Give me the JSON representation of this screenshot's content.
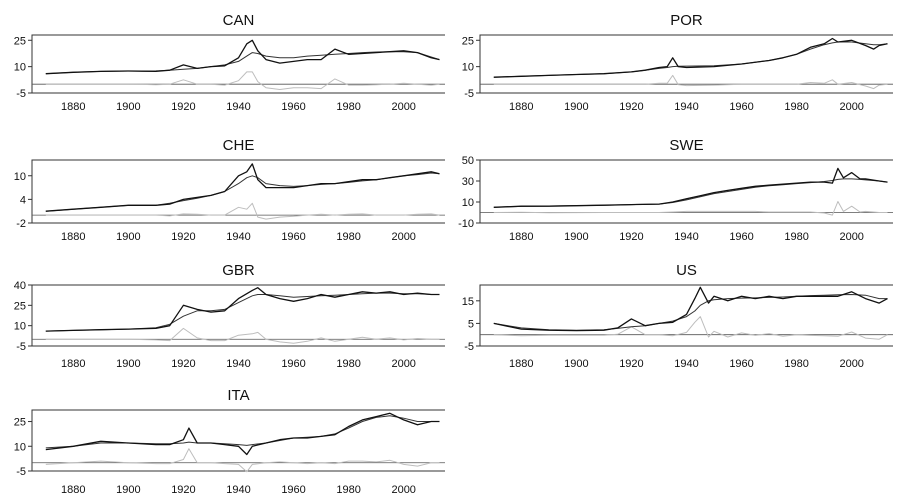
{
  "chart_data": [
    {
      "type": "line",
      "title": "CAN",
      "ylim": [
        -5,
        28
      ],
      "yticks": [
        -5,
        10,
        25
      ],
      "x": [
        1870,
        1880,
        1890,
        1900,
        1905,
        1910,
        1915,
        1920,
        1925,
        1930,
        1935,
        1940,
        1943,
        1945,
        1947,
        1950,
        1955,
        1960,
        1965,
        1970,
        1975,
        1980,
        1985,
        1990,
        1995,
        2000,
        2005,
        2010,
        2013
      ],
      "series": [
        {
          "role": "actual",
          "values": [
            6,
            6.8,
            7.3,
            7.5,
            7.4,
            7.3,
            8,
            11,
            9,
            10,
            10.5,
            15,
            23,
            25,
            19,
            14,
            12,
            13,
            14,
            14,
            20,
            17,
            17.5,
            18,
            18.5,
            19,
            18,
            15,
            14
          ]
        },
        {
          "role": "trend",
          "values": [
            6,
            6.8,
            7.3,
            7.5,
            7.5,
            7.6,
            8,
            8.5,
            9,
            10,
            11,
            13,
            16,
            18,
            17.5,
            16,
            15,
            15,
            16,
            16.5,
            17,
            17.5,
            18,
            18.3,
            18.5,
            18.5,
            18,
            15.5,
            14
          ]
        },
        {
          "role": "cycle",
          "values": [
            0,
            0,
            0,
            0,
            -0.1,
            -0.3,
            0,
            2.5,
            0,
            0,
            -0.5,
            2,
            7,
            7,
            1.5,
            -2,
            -3,
            -2,
            -2,
            -2.5,
            3,
            -0.5,
            -0.5,
            -0.3,
            0,
            0.5,
            0,
            -0.5,
            0
          ]
        }
      ]
    },
    {
      "type": "line",
      "title": "POR",
      "ylim": [
        -5,
        28
      ],
      "yticks": [
        -5,
        10,
        25
      ],
      "x": [
        1870,
        1880,
        1890,
        1900,
        1910,
        1920,
        1925,
        1930,
        1933,
        1935,
        1937,
        1940,
        1950,
        1960,
        1970,
        1975,
        1980,
        1985,
        1990,
        1993,
        1995,
        2000,
        2005,
        2008,
        2010,
        2013
      ],
      "series": [
        {
          "role": "actual",
          "values": [
            4,
            4.5,
            5,
            5.5,
            6,
            7,
            8,
            9.5,
            10,
            15,
            10,
            9.5,
            10,
            11.5,
            13.5,
            15,
            17,
            21,
            23,
            26,
            24,
            25,
            22,
            20,
            22,
            23
          ]
        },
        {
          "role": "trend",
          "values": [
            4,
            4.5,
            5,
            5.5,
            6,
            7,
            8,
            9,
            9.5,
            10,
            10.2,
            10.3,
            10.5,
            11.5,
            13.5,
            15,
            17,
            20,
            22.5,
            23.5,
            24,
            24,
            23,
            22.5,
            22.5,
            23
          ]
        },
        {
          "role": "cycle",
          "values": [
            0,
            0,
            0,
            0,
            0,
            0,
            0,
            0.5,
            0.5,
            5,
            -0.2,
            -0.8,
            -0.5,
            0,
            0,
            0,
            0,
            1,
            0.5,
            2.5,
            0,
            1,
            -1,
            -2.5,
            -0.5,
            0
          ]
        }
      ]
    },
    {
      "type": "line",
      "title": "CHE",
      "ylim": [
        -2,
        14
      ],
      "yticks": [
        -2,
        4,
        10
      ],
      "x": [
        1870,
        1880,
        1890,
        1900,
        1910,
        1915,
        1920,
        1925,
        1930,
        1935,
        1940,
        1943,
        1945,
        1947,
        1950,
        1955,
        1960,
        1965,
        1970,
        1975,
        1980,
        1985,
        1990,
        1995,
        2000,
        2005,
        2010,
        2013
      ],
      "series": [
        {
          "role": "actual",
          "values": [
            1,
            1.5,
            2,
            2.5,
            2.5,
            2.8,
            4,
            4.5,
            5,
            6,
            10,
            11,
            13,
            9,
            7,
            7,
            7,
            7.5,
            8,
            8,
            8.5,
            9,
            9,
            9.5,
            10,
            10.5,
            11,
            10.5
          ]
        },
        {
          "role": "trend",
          "values": [
            1,
            1.5,
            2,
            2.5,
            2.5,
            3,
            3.7,
            4.3,
            5,
            6,
            8,
            9.5,
            10,
            9.5,
            8,
            7.5,
            7.3,
            7.5,
            7.8,
            8,
            8.3,
            8.7,
            9,
            9.5,
            10,
            10.3,
            10.7,
            10.5
          ]
        },
        {
          "role": "cycle",
          "values": [
            0,
            0,
            0,
            0,
            0,
            -0.2,
            0.3,
            0.2,
            0,
            0,
            2,
            1.5,
            3,
            -0.5,
            -1,
            -0.5,
            -0.3,
            0,
            0.2,
            0,
            0.2,
            0.3,
            0,
            0,
            0,
            0.2,
            0.3,
            0
          ]
        }
      ]
    },
    {
      "type": "line",
      "title": "SWE",
      "ylim": [
        -10,
        50
      ],
      "yticks": [
        -10,
        10,
        30,
        50
      ],
      "x": [
        1870,
        1880,
        1890,
        1900,
        1910,
        1920,
        1930,
        1935,
        1940,
        1945,
        1950,
        1955,
        1960,
        1965,
        1970,
        1975,
        1980,
        1985,
        1990,
        1993,
        1995,
        1997,
        2000,
        2003,
        2005,
        2010,
        2013
      ],
      "series": [
        {
          "role": "actual",
          "values": [
            5,
            6,
            6,
            6.5,
            7,
            7.5,
            8,
            10,
            13,
            16,
            19,
            21,
            23,
            25,
            26,
            27,
            28,
            29,
            29,
            28,
            42,
            33,
            38,
            32,
            32,
            30,
            29
          ]
        },
        {
          "role": "trend",
          "values": [
            5,
            5.8,
            6.2,
            6.6,
            7,
            7.5,
            8,
            9.5,
            12,
            15,
            18,
            20,
            22,
            24,
            25.5,
            26.5,
            27.5,
            28.5,
            29.5,
            30.5,
            31.5,
            32,
            32,
            31.5,
            31,
            30,
            29
          ]
        },
        {
          "role": "cycle",
          "values": [
            0,
            0.2,
            -0.2,
            -0.1,
            0,
            0,
            0,
            0.5,
            1,
            1,
            1,
            1,
            1,
            1,
            0.5,
            0.5,
            0.5,
            0.5,
            -0.5,
            -2.5,
            10.5,
            1,
            6,
            0.5,
            1,
            0,
            0
          ]
        }
      ]
    },
    {
      "type": "line",
      "title": "GBR",
      "ylim": [
        -5,
        40
      ],
      "yticks": [
        -5,
        10,
        25,
        40
      ],
      "x": [
        1870,
        1880,
        1890,
        1900,
        1910,
        1915,
        1920,
        1925,
        1930,
        1935,
        1940,
        1945,
        1947,
        1950,
        1955,
        1960,
        1965,
        1970,
        1975,
        1980,
        1985,
        1990,
        1995,
        2000,
        2005,
        2010,
        2013
      ],
      "series": [
        {
          "role": "actual",
          "values": [
            6,
            6.5,
            7,
            7.5,
            8,
            10,
            25,
            22,
            20,
            21,
            30,
            36,
            38,
            33,
            30,
            28,
            30,
            33,
            31,
            33,
            35,
            34,
            35,
            33,
            34,
            33,
            33
          ]
        },
        {
          "role": "trend",
          "values": [
            6,
            6.5,
            7,
            7.5,
            8.5,
            11,
            17,
            21,
            21,
            22,
            27,
            32,
            33,
            33,
            32,
            31,
            31.5,
            32,
            32.5,
            33,
            33.5,
            34,
            34,
            33.5,
            33.5,
            33,
            33
          ]
        },
        {
          "role": "cycle",
          "values": [
            0,
            0,
            0,
            0,
            -0.5,
            -1,
            8,
            1,
            -1,
            -1,
            3,
            4,
            5,
            0,
            -2,
            -3,
            -1.5,
            1,
            -1.5,
            0,
            1.5,
            0,
            1,
            -0.5,
            0.5,
            0,
            0
          ]
        }
      ]
    },
    {
      "type": "line",
      "title": "US",
      "ylim": [
        -5,
        22
      ],
      "yticks": [
        -5,
        5,
        15
      ],
      "x": [
        1870,
        1880,
        1890,
        1900,
        1910,
        1915,
        1920,
        1925,
        1930,
        1935,
        1940,
        1943,
        1945,
        1948,
        1950,
        1955,
        1960,
        1965,
        1970,
        1975,
        1980,
        1985,
        1990,
        1995,
        2000,
        2005,
        2010,
        2013
      ],
      "series": [
        {
          "role": "actual",
          "values": [
            5,
            2.5,
            2,
            1.8,
            2,
            3,
            7,
            4,
            5,
            5.5,
            9,
            16,
            21,
            14,
            17,
            15,
            17,
            16,
            17,
            16,
            17,
            17,
            17,
            17,
            19,
            16,
            14,
            16
          ]
        },
        {
          "role": "trend",
          "values": [
            5,
            3,
            2.2,
            2,
            2.2,
            2.8,
            3.5,
            4,
            5,
            6,
            8,
            10.5,
            13,
            15,
            15.5,
            16,
            16.2,
            16.3,
            16.5,
            16.7,
            17,
            17.3,
            17.5,
            17.7,
            17.8,
            17.5,
            16,
            16
          ]
        },
        {
          "role": "cycle",
          "values": [
            0,
            -0.5,
            -0.2,
            -0.2,
            -0.2,
            0.2,
            3.5,
            0,
            0,
            -0.5,
            1,
            5.5,
            8,
            -1,
            1.5,
            -1,
            0.8,
            -0.3,
            0.5,
            -0.7,
            0,
            -0.3,
            -0.5,
            -0.7,
            1.2,
            -1.5,
            -2,
            0
          ]
        }
      ]
    },
    {
      "type": "line",
      "title": "ITA",
      "ylim": [
        -5,
        32
      ],
      "yticks": [
        -5,
        10,
        25
      ],
      "x": [
        1870,
        1880,
        1890,
        1900,
        1910,
        1915,
        1920,
        1922,
        1925,
        1930,
        1935,
        1940,
        1943,
        1945,
        1950,
        1955,
        1960,
        1965,
        1970,
        1975,
        1980,
        1985,
        1990,
        1995,
        2000,
        2005,
        2010,
        2013
      ],
      "series": [
        {
          "role": "actual",
          "values": [
            8,
            10,
            13,
            12,
            11,
            11,
            14,
            21,
            12,
            12,
            11,
            10,
            5,
            10,
            12,
            14,
            15,
            15,
            16,
            17,
            22,
            26,
            28,
            30,
            26,
            23,
            25,
            25
          ]
        },
        {
          "role": "trend",
          "values": [
            9,
            10,
            12,
            12,
            11.5,
            11.5,
            12,
            12.5,
            12,
            12,
            11.5,
            11,
            10.5,
            11,
            12,
            13.5,
            15,
            15.5,
            16,
            17.5,
            21,
            25,
            27.5,
            28.5,
            27,
            25,
            25,
            25
          ]
        },
        {
          "role": "cycle",
          "values": [
            -1,
            0,
            1,
            0,
            -0.5,
            -0.5,
            2,
            8.5,
            0,
            0,
            -0.5,
            -1,
            -5.5,
            -1,
            0,
            0.5,
            0,
            -0.5,
            0,
            -0.5,
            1,
            1,
            0.5,
            1.5,
            -1,
            -2,
            0,
            0
          ]
        }
      ]
    }
  ],
  "xaxis": {
    "range": [
      1865,
      2015
    ],
    "ticks": [
      1880,
      1900,
      1920,
      1940,
      1960,
      1980,
      2000
    ]
  },
  "colors": {
    "actual": "#111111",
    "trend": "#333333",
    "cycle": "#bdbdbd",
    "axis": "#333333"
  }
}
